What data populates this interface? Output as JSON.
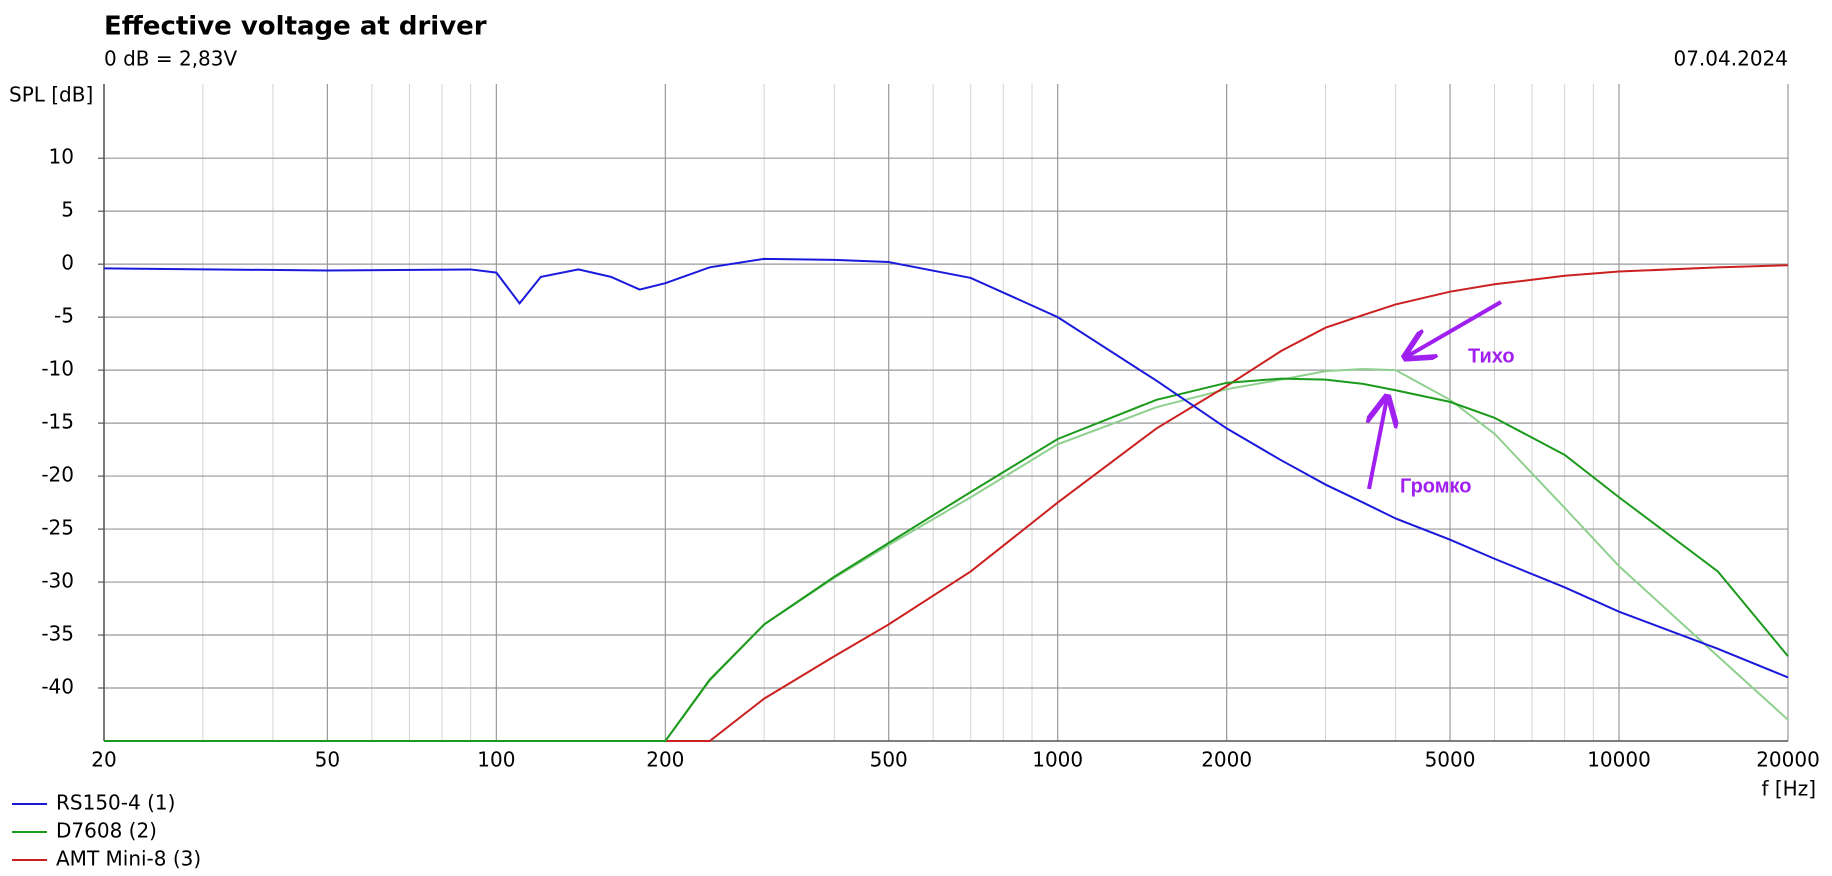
{
  "chart_data": {
    "type": "line",
    "title": "Effective voltage at driver",
    "subtitle": "0 dB = 2,83V",
    "date": "07.04.2024",
    "y_label": "SPL [dB]",
    "x_label": "f [Hz]",
    "log_x": true,
    "grid": true,
    "xlim": [
      20,
      20000
    ],
    "xticks": [
      20,
      50,
      100,
      200,
      500,
      1000,
      2000,
      5000,
      10000,
      20000
    ],
    "xminorticks": [
      30,
      40,
      60,
      70,
      80,
      90,
      300,
      400,
      600,
      700,
      800,
      900,
      3000,
      4000,
      6000,
      7000,
      8000,
      9000
    ],
    "ylim": [
      -45,
      17
    ],
    "yticks": [
      10,
      5,
      0,
      -5,
      -10,
      -15,
      -20,
      -25,
      -30,
      -35,
      -40
    ],
    "x": [
      20,
      50,
      90,
      100,
      110,
      120,
      140,
      160,
      180,
      200,
      240,
      300,
      400,
      500,
      700,
      1000,
      1500,
      2000,
      2500,
      3000,
      3500,
      4000,
      5000,
      6000,
      8000,
      10000,
      15000,
      20000
    ],
    "series": [
      {
        "name": "RS150-4 (1)",
        "color": "#1a1adc",
        "values": [
          -0.4,
          -0.6,
          -0.5,
          -0.8,
          -3.7,
          -1.2,
          -0.5,
          -1.2,
          -2.4,
          -1.8,
          -0.3,
          0.5,
          0.4,
          0.2,
          -1.3,
          -5,
          -11,
          -15.5,
          -18.5,
          -20.8,
          -22.5,
          -24,
          -26,
          -27.8,
          -30.5,
          -32.8,
          -36.3,
          -39
        ]
      },
      {
        "name": "D7608 (2)",
        "color": "#1c9a1c",
        "values": [
          -45,
          -45,
          -45,
          -45,
          -45,
          -45,
          -45,
          -45,
          -45,
          -45,
          -39.2,
          -34,
          -29.5,
          -26.3,
          -21.5,
          -16.5,
          -12.8,
          -11.2,
          -10.8,
          -10.9,
          -11.3,
          -11.9,
          -13,
          -14.5,
          -18,
          -22,
          -29,
          -37
        ]
      },
      {
        "name": "AMT Mini-8 (3)",
        "color": "#cc2020",
        "values": [
          null,
          null,
          null,
          null,
          null,
          null,
          null,
          null,
          null,
          -45,
          -45,
          -41,
          -37,
          -34,
          -29,
          -22.5,
          -15.5,
          -11.5,
          -8.2,
          -6,
          -4.8,
          -3.8,
          -2.6,
          -1.9,
          -1.1,
          -0.7,
          -0.3,
          -0.1
        ]
      },
      {
        "color": "#8fd08f",
        "values": [
          null,
          null,
          null,
          null,
          null,
          null,
          null,
          null,
          null,
          -45,
          -39.3,
          -34,
          -29.6,
          -26.5,
          -22,
          -17,
          -13.5,
          -11.8,
          -10.9,
          -10.1,
          -9.9,
          -10,
          -12.8,
          -16,
          -23,
          -28.5,
          -37,
          -43
        ]
      }
    ],
    "annotations": [
      "Тихо",
      "Громко"
    ]
  }
}
